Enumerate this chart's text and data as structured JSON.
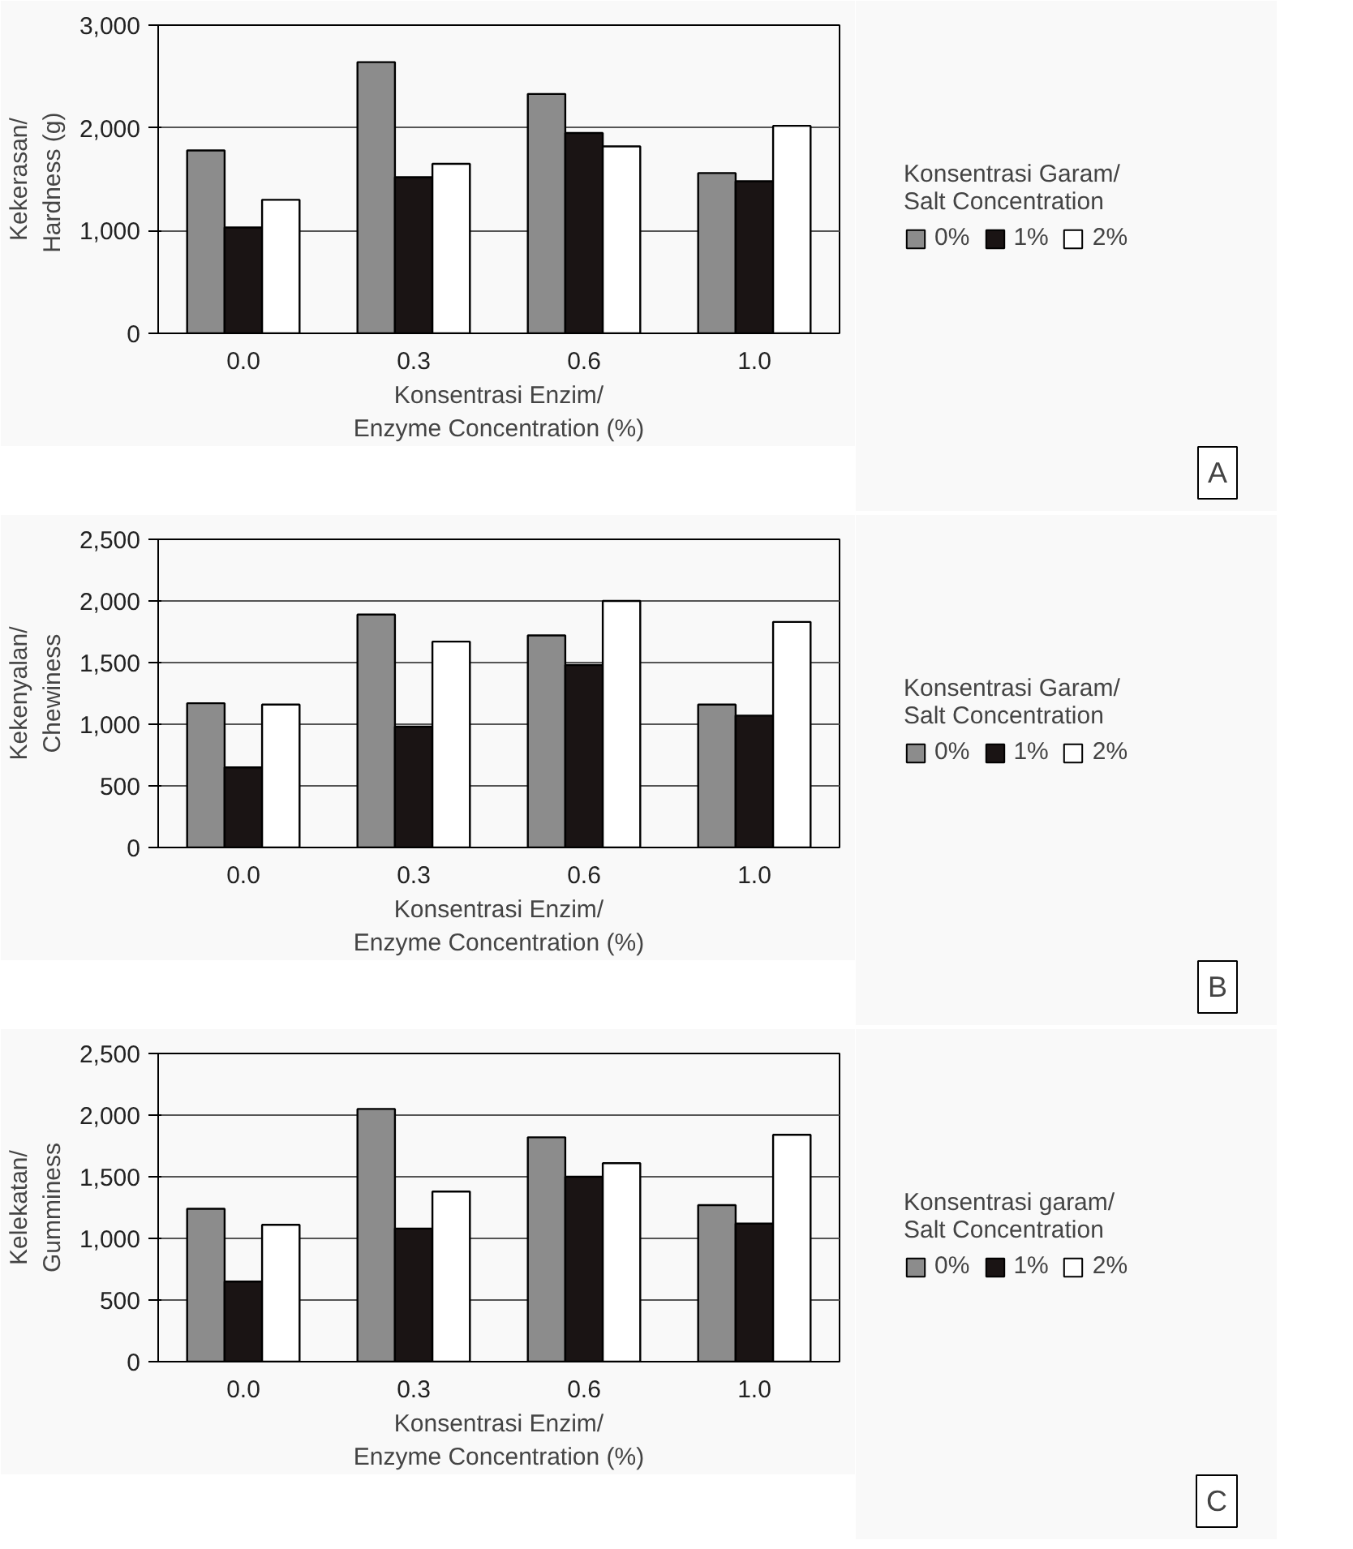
{
  "chart_data": [
    {
      "type": "bar",
      "categories": [
        "0.0",
        "0.3",
        "0.6",
        "1.0"
      ],
      "xlabel": "Konsentrasi Enzim/\nEnzyme Concentration (%)",
      "ylabel": "Kekerasan/\nHardness  (g)",
      "legend_title": "Konsentrasi Garam/\nSalt Concentration",
      "ylim": [
        0,
        3000
      ],
      "yticks": [
        {
          "value": 0,
          "label": "0"
        },
        {
          "value": 1000,
          "label": "1,000"
        },
        {
          "value": 2000,
          "label": "2,000"
        },
        {
          "value": 3000,
          "label": "3,000"
        }
      ],
      "grid": "y",
      "legend": "right",
      "annotations": [
        "A"
      ],
      "series": [
        {
          "name": "0%",
          "color": "#8c8c8c",
          "values": [
            1780,
            2640,
            2330,
            1560
          ]
        },
        {
          "name": "1%",
          "color": "#1a1414",
          "values": [
            1030,
            1520,
            1950,
            1480
          ]
        },
        {
          "name": "2%",
          "color": "#ffffff",
          "values": [
            1300,
            1650,
            1820,
            2020
          ]
        }
      ]
    },
    {
      "type": "bar",
      "categories": [
        "0.0",
        "0.3",
        "0.6",
        "1.0"
      ],
      "xlabel": "Konsentrasi Enzim/\nEnzyme Concentration (%)",
      "ylabel": "Kekenyalan/\nChewiness",
      "legend_title": "Konsentrasi Garam/\nSalt Concentration",
      "ylim": [
        0,
        2500
      ],
      "yticks": [
        {
          "value": 0,
          "label": "0"
        },
        {
          "value": 500,
          "label": "500"
        },
        {
          "value": 1000,
          "label": "1,000"
        },
        {
          "value": 1500,
          "label": "1,500"
        },
        {
          "value": 2000,
          "label": "2,000"
        },
        {
          "value": 2500,
          "label": "2,500"
        }
      ],
      "grid": "y",
      "legend": "right",
      "annotations": [
        "B"
      ],
      "series": [
        {
          "name": "0%",
          "color": "#8c8c8c",
          "values": [
            1170,
            1890,
            1720,
            1160
          ]
        },
        {
          "name": "1%",
          "color": "#1a1414",
          "values": [
            650,
            980,
            1480,
            1070
          ]
        },
        {
          "name": "2%",
          "color": "#ffffff",
          "values": [
            1160,
            1670,
            2000,
            1830
          ]
        }
      ]
    },
    {
      "type": "bar",
      "categories": [
        "0.0",
        "0.3",
        "0.6",
        "1.0"
      ],
      "xlabel": "Konsentrasi Enzim/\nEnzyme Concentration (%)",
      "ylabel": "Kelekatan/\nGumminess",
      "legend_title": "Konsentrasi garam/\nSalt Concentration",
      "ylim": [
        0,
        2500
      ],
      "yticks": [
        {
          "value": 0,
          "label": "0"
        },
        {
          "value": 500,
          "label": "500"
        },
        {
          "value": 1000,
          "label": "1,000"
        },
        {
          "value": 1500,
          "label": "1,500"
        },
        {
          "value": 2000,
          "label": "2,000"
        },
        {
          "value": 2500,
          "label": "2,500"
        }
      ],
      "grid": "y",
      "legend": "right",
      "annotations": [
        "C"
      ],
      "series": [
        {
          "name": "0%",
          "color": "#8c8c8c",
          "values": [
            1240,
            2050,
            1820,
            1270
          ]
        },
        {
          "name": "1%",
          "color": "#1a1414",
          "values": [
            650,
            1080,
            1500,
            1120
          ]
        },
        {
          "name": "2%",
          "color": "#ffffff",
          "values": [
            1110,
            1380,
            1610,
            1840
          ]
        }
      ]
    }
  ]
}
